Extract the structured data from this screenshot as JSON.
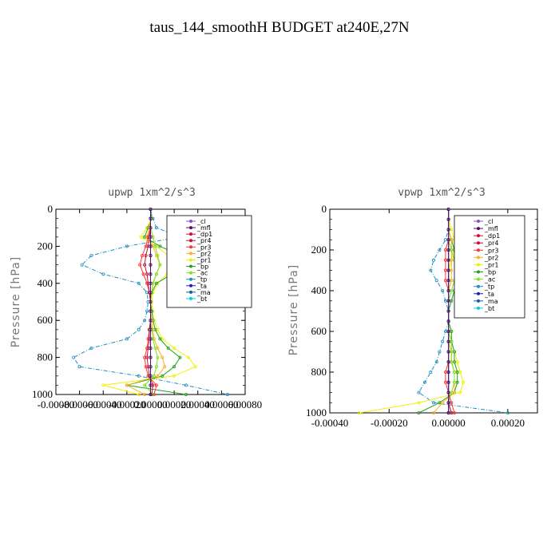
{
  "figure": {
    "title": "taus_144_smoothH  BUDGET at240E,27N"
  },
  "legend_names": [
    "_cl",
    "_mfl",
    "_dp1",
    "_pr4",
    "_pr3",
    "_pr2",
    "_pr1",
    "_bp",
    "_ac",
    "_tp",
    "_ta",
    "_ma",
    "_bt"
  ],
  "colors": {
    "_cl": "#8a4fd8",
    "_mfl": "#5a0f5f",
    "_dp1": "#d01030",
    "_pr4": "#c8103c",
    "_pr3": "#ff3333",
    "_pr2": "#ffb020",
    "_pr1": "#f0f000",
    "_bp": "#20a020",
    "_ac": "#80e020",
    "_tp": "#2090c0",
    "_ta": "#2020c0",
    "_ma": "#1060a0",
    "_bt": "#00d0e0"
  },
  "chart_data": [
    {
      "type": "line",
      "title": "upwp  1xm^2/s^3",
      "ylabel": "Pressure [hPa]",
      "xlim": [
        -0.0008,
        0.0008
      ],
      "ylim": [
        0,
        1000
      ],
      "y_inverted": true,
      "yticks": [
        0,
        200,
        400,
        600,
        800,
        1000
      ],
      "ytick_labels": [
        "0",
        "200",
        "400",
        "600",
        "800",
        "1000"
      ],
      "xtick_labels": [
        "-0.00080",
        "-0.00060",
        "-0.00040",
        "-0.00020",
        "0.00000",
        "0.00020",
        "0.00040",
        "0.00060",
        "0.00080"
      ],
      "xticks": [
        -0.0008,
        -0.0006,
        -0.0004,
        -0.0002,
        0,
        0.0002,
        0.0004,
        0.0006,
        0.0008
      ],
      "legend": [
        "_cl",
        "_mfl",
        "_dp1",
        "_pr4",
        "_pr3",
        "_pr2",
        "_pr1",
        "_bp",
        "_ac",
        "_tp",
        "_ta",
        "_ma",
        "_bt"
      ],
      "legend_position": "upper-right",
      "y": [
        0,
        50,
        100,
        150,
        200,
        250,
        300,
        350,
        400,
        450,
        500,
        550,
        600,
        650,
        700,
        750,
        800,
        850,
        900,
        950,
        1000
      ],
      "series": [
        {
          "name": "_tp",
          "values": [
            0,
            2e-05,
            5e-05,
            0.00025,
            -0.0002,
            -0.0005,
            -0.00058,
            -0.0004,
            -0.0001,
            -3e-05,
            -2e-05,
            -3e-05,
            -5e-05,
            -0.0001,
            -0.0002,
            -0.0005,
            -0.00065,
            -0.0006,
            -0.0001,
            0.0003,
            0.00065
          ]
        },
        {
          "name": "_pr1",
          "values": [
            0,
            1e-05,
            -3e-05,
            -8e-05,
            5e-05,
            0.00015,
            0.00022,
            0.00014,
            6e-05,
            2e-05,
            1e-05,
            2e-05,
            3e-05,
            6e-05,
            0.0001,
            0.0002,
            0.00032,
            0.00038,
            0.0002,
            -0.0004,
            -0.0001
          ]
        },
        {
          "name": "_bp",
          "values": [
            0,
            1e-05,
            -2e-05,
            -5e-05,
            8e-05,
            0.00025,
            0.00035,
            0.00018,
            5e-05,
            1e-05,
            0,
            1e-05,
            2e-05,
            4e-05,
            8e-05,
            0.00015,
            0.00025,
            0.0002,
            0.0001,
            -0.0002,
            0.0003
          ]
        },
        {
          "name": "_pr2",
          "values": [
            0,
            0,
            -1e-05,
            -3e-05,
            2e-05,
            5e-05,
            8e-05,
            5e-05,
            2e-05,
            1e-05,
            0,
            0,
            1e-05,
            2e-05,
            3e-05,
            6e-05,
            0.0001,
            0.00012,
            6e-05,
            -0.0002,
            -5e-05
          ]
        },
        {
          "name": "_pr3",
          "values": [
            0,
            0,
            0,
            -2e-05,
            -4e-05,
            -7e-05,
            -9e-05,
            -6e-05,
            -3e-05,
            -1e-05,
            0,
            0,
            0,
            -1e-05,
            -2e-05,
            -3e-05,
            -5e-05,
            -4e-05,
            -2e-05,
            5e-05,
            3e-05
          ]
        },
        {
          "name": "_pr4",
          "values": [
            0,
            0,
            0,
            -1e-05,
            -2e-05,
            -4e-05,
            -5e-05,
            -3e-05,
            -2e-05,
            -1e-05,
            0,
            0,
            0,
            -1e-05,
            -1e-05,
            -2e-05,
            -3e-05,
            -2e-05,
            -1e-05,
            2e-05,
            1e-05
          ]
        },
        {
          "name": "_ac",
          "values": [
            0,
            0,
            0,
            2e-05,
            4e-05,
            6e-05,
            8e-05,
            5e-05,
            2e-05,
            1e-05,
            0,
            0,
            0,
            1e-05,
            2e-05,
            4e-05,
            6e-05,
            5e-05,
            3e-05,
            -5e-05,
            2e-05
          ]
        },
        {
          "name": "_dp1",
          "values": [
            0,
            0,
            0,
            0,
            0,
            0,
            0,
            0,
            0,
            0,
            0,
            0,
            0,
            0,
            0,
            0,
            0,
            0,
            0,
            0,
            0
          ]
        },
        {
          "name": "_ta",
          "values": [
            0,
            0,
            0,
            0,
            0,
            0,
            0,
            0,
            0,
            0,
            0,
            0,
            0,
            0,
            0,
            0,
            0,
            0,
            0,
            0,
            0
          ]
        },
        {
          "name": "_ma",
          "values": [
            0,
            0,
            0,
            0,
            0,
            0,
            0,
            0,
            0,
            0,
            0,
            0,
            0,
            0,
            0,
            0,
            0,
            0,
            0,
            0,
            0
          ]
        },
        {
          "name": "_cl",
          "values": [
            0,
            0,
            0,
            0,
            0,
            0,
            0,
            0,
            0,
            0,
            0,
            0,
            0,
            0,
            0,
            0,
            0,
            0,
            0,
            0,
            0
          ]
        },
        {
          "name": "_bt",
          "values": [
            0,
            0,
            0,
            0,
            0,
            0,
            0,
            0,
            0,
            0,
            0,
            0,
            0,
            0,
            0,
            0,
            0,
            0,
            0,
            0,
            0
          ]
        },
        {
          "name": "_mfl",
          "values": [
            0,
            0,
            0,
            0,
            0,
            0,
            0,
            0,
            0,
            0,
            0,
            0,
            0,
            0,
            0,
            0,
            0,
            0,
            0,
            0,
            0
          ]
        }
      ]
    },
    {
      "type": "line",
      "title": "vpwp  1xm^2/s^3",
      "ylabel": "Pressure [hPa]",
      "xlim": [
        -0.0004,
        0.0003
      ],
      "ylim": [
        0,
        1000
      ],
      "y_inverted": true,
      "yticks": [
        0,
        200,
        400,
        600,
        800,
        1000
      ],
      "ytick_labels": [
        "0",
        "200",
        "400",
        "600",
        "800",
        "1000"
      ],
      "xticks": [
        -0.0004,
        -0.0002,
        0,
        0.0002
      ],
      "xtick_labels": [
        "-0.00040",
        "-0.00020",
        "0.00000",
        "0.00020"
      ],
      "legend": [
        "_cl",
        "_mfl",
        "_dp1",
        "_pr4",
        "_pr3",
        "_pr2",
        "_pr1",
        "_bp",
        "_ac",
        "_tp",
        "_ta",
        "_ma",
        "_bt"
      ],
      "legend_position": "upper-right",
      "y": [
        0,
        50,
        100,
        150,
        200,
        250,
        300,
        350,
        400,
        450,
        500,
        550,
        600,
        650,
        700,
        750,
        800,
        850,
        900,
        950,
        1000
      ],
      "series": [
        {
          "name": "_tp",
          "values": [
            0,
            0,
            0,
            -1e-05,
            -3e-05,
            -5e-05,
            -6e-05,
            -4e-05,
            -2e-05,
            -1e-05,
            0,
            0,
            -1e-05,
            -2e-05,
            -3e-05,
            -4e-05,
            -6e-05,
            -8e-05,
            -0.0001,
            -5e-05,
            0.0002
          ]
        },
        {
          "name": "_pr1",
          "values": [
            0,
            0,
            1e-05,
            2e-05,
            2e-05,
            1e-05,
            0,
            0,
            0,
            0,
            0,
            0,
            1e-05,
            1e-05,
            2e-05,
            3e-05,
            4e-05,
            5e-05,
            4e-05,
            -0.0001,
            -0.0003
          ]
        },
        {
          "name": "_bp",
          "values": [
            0,
            0,
            0,
            1e-05,
            2e-05,
            3e-05,
            4e-05,
            3e-05,
            2e-05,
            1e-05,
            0,
            0,
            1e-05,
            1e-05,
            2e-05,
            2e-05,
            3e-05,
            3e-05,
            2e-05,
            -3e-05,
            -0.0001
          ]
        },
        {
          "name": "_pr2",
          "values": [
            0,
            0,
            0,
            1e-05,
            1e-05,
            1e-05,
            1e-05,
            1e-05,
            0,
            0,
            0,
            0,
            0,
            0,
            1e-05,
            1e-05,
            2e-05,
            2e-05,
            2e-05,
            -2e-05,
            -5e-05
          ]
        },
        {
          "name": "_ac",
          "values": [
            0,
            0,
            0,
            0,
            1e-05,
            2e-05,
            3e-05,
            2e-05,
            1e-05,
            0,
            0,
            0,
            0,
            1e-05,
            1e-05,
            1e-05,
            2e-05,
            2e-05,
            1e-05,
            0,
            1e-05
          ]
        },
        {
          "name": "_pr3",
          "values": [
            0,
            0,
            0,
            0,
            -1e-05,
            -1e-05,
            -1e-05,
            -1e-05,
            0,
            0,
            0,
            0,
            0,
            0,
            0,
            0,
            -1e-05,
            -1e-05,
            0,
            1e-05,
            2e-05
          ]
        },
        {
          "name": "_pr4",
          "values": [
            0,
            0,
            0,
            0,
            0,
            0,
            0,
            0,
            0,
            0,
            0,
            0,
            0,
            0,
            0,
            0,
            0,
            0,
            0,
            0,
            1e-05
          ]
        },
        {
          "name": "_dp1",
          "values": [
            0,
            0,
            0,
            0,
            0,
            0,
            0,
            0,
            0,
            0,
            0,
            0,
            0,
            0,
            0,
            0,
            0,
            0,
            0,
            0,
            0
          ]
        },
        {
          "name": "_ta",
          "values": [
            0,
            0,
            0,
            0,
            0,
            0,
            0,
            0,
            0,
            0,
            0,
            0,
            0,
            0,
            0,
            0,
            0,
            0,
            0,
            0,
            0
          ]
        },
        {
          "name": "_ma",
          "values": [
            0,
            0,
            0,
            0,
            0,
            0,
            0,
            0,
            0,
            0,
            0,
            0,
            0,
            0,
            0,
            0,
            0,
            0,
            0,
            0,
            0
          ]
        },
        {
          "name": "_cl",
          "values": [
            0,
            0,
            0,
            0,
            0,
            0,
            0,
            0,
            0,
            0,
            0,
            0,
            0,
            0,
            0,
            0,
            0,
            0,
            0,
            0,
            0
          ]
        },
        {
          "name": "_bt",
          "values": [
            0,
            0,
            0,
            0,
            0,
            0,
            0,
            0,
            0,
            0,
            0,
            0,
            0,
            0,
            0,
            0,
            0,
            0,
            0,
            0,
            0
          ]
        },
        {
          "name": "_mfl",
          "values": [
            0,
            0,
            0,
            0,
            0,
            0,
            0,
            0,
            0,
            0,
            0,
            0,
            0,
            0,
            0,
            0,
            0,
            0,
            0,
            0,
            0
          ]
        }
      ]
    }
  ]
}
